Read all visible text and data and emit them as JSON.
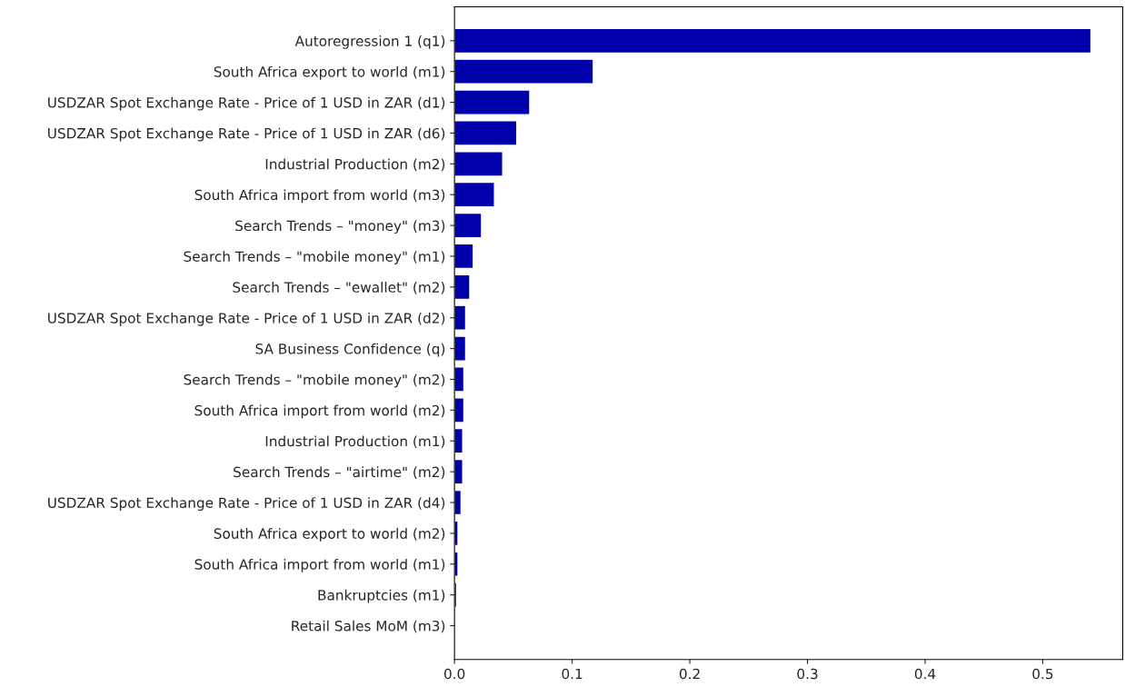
{
  "chart_data": {
    "type": "bar",
    "orientation": "horizontal",
    "categories": [
      "Autoregression 1 (q1)",
      "South Africa export to world (m1)",
      "USDZAR Spot Exchange Rate - Price of 1 USD in ZAR (d1)",
      "USDZAR Spot Exchange Rate - Price of 1 USD in ZAR (d6)",
      "Industrial Production (m2)",
      "South Africa import from world (m3)",
      "Search Trends – \"money\" (m3)",
      "Search Trends – \"mobile money\" (m1)",
      "Search Trends – \"ewallet\" (m2)",
      "USDZAR Spot Exchange Rate - Price of 1 USD in ZAR (d2)",
      "SA Business Confidence (q)",
      "Search Trends – \"mobile money\" (m2)",
      "South Africa import from world (m2)",
      "Industrial Production (m1)",
      "Search Trends – \"airtime\" (m2)",
      "USDZAR Spot Exchange Rate - Price of 1 USD in ZAR (d4)",
      "South Africa export to world (m2)",
      "South Africa import from world (m1)",
      "Bankruptcies (m1)",
      "Retail Sales MoM (m3)"
    ],
    "values": [
      0.541,
      0.118,
      0.064,
      0.053,
      0.041,
      0.034,
      0.023,
      0.016,
      0.013,
      0.0095,
      0.0095,
      0.008,
      0.008,
      0.007,
      0.007,
      0.0056,
      0.003,
      0.003,
      0.0018,
      null
    ],
    "color": "#0000aa",
    "xlim": [
      0,
      0.568
    ],
    "xticks": [
      {
        "value": 0,
        "label": "0.0"
      },
      0.1,
      0.2,
      0.3,
      0.4,
      0.5
    ],
    "grid": false
  }
}
